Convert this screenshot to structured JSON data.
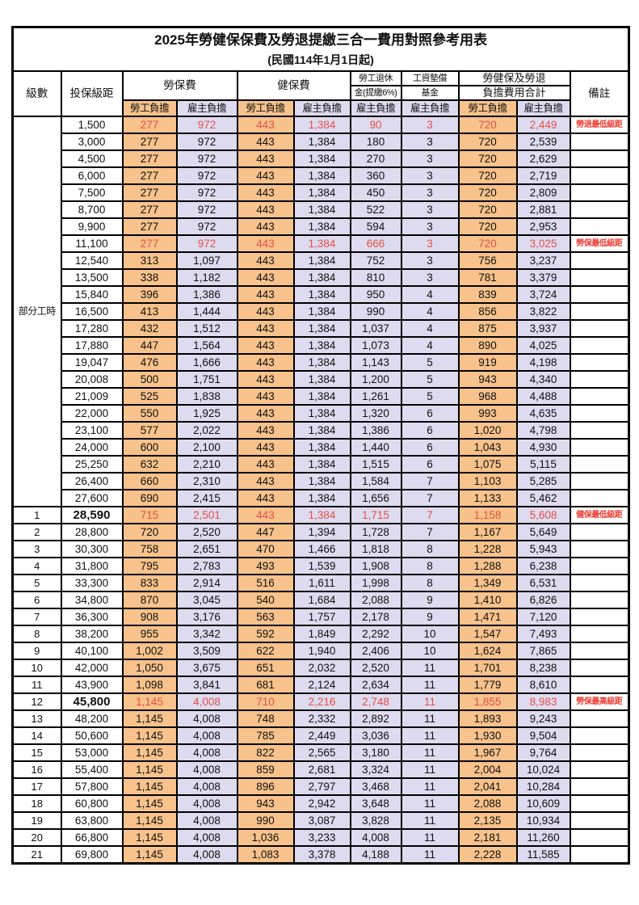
{
  "title": "2025年勞健保保費及勞退提繳三合一費用對照參考用表",
  "subtitle": "(民國114年1月1日起)",
  "header": {
    "level": "級數",
    "bracket": "投保級距",
    "labor_insurance": "勞保費",
    "health_insurance": "健保費",
    "pension_line1": "勞工退休",
    "pension_line2": "金(提繳6%)",
    "wage_fund_line1": "工資墊償",
    "wage_fund_line2": "基金",
    "total_line1": "勞健保及勞退",
    "total_line2": "負擔費用合計",
    "remark": "備註",
    "employee_share": "勞工負擔",
    "employer_share": "雇主負擔"
  },
  "part_time_label": "部分工時",
  "part_time_rowspan": 23,
  "colors": {
    "employee_bg": "#f7c28b",
    "employer_bg": "#dedbf0",
    "red_text": "#e64f46",
    "remark_red": "#f03a30"
  },
  "rows": [
    {
      "level": "",
      "bracket": "1,500",
      "values": [
        "277",
        "972",
        "443",
        "1,384",
        "90",
        "3",
        "720",
        "2,449"
      ],
      "remark": "勞退最低級距",
      "red": true
    },
    {
      "level": "",
      "bracket": "3,000",
      "values": [
        "277",
        "972",
        "443",
        "1,384",
        "180",
        "3",
        "720",
        "2,539"
      ]
    },
    {
      "level": "",
      "bracket": "4,500",
      "values": [
        "277",
        "972",
        "443",
        "1,384",
        "270",
        "3",
        "720",
        "2,629"
      ]
    },
    {
      "level": "",
      "bracket": "6,000",
      "values": [
        "277",
        "972",
        "443",
        "1,384",
        "360",
        "3",
        "720",
        "2,719"
      ]
    },
    {
      "level": "",
      "bracket": "7,500",
      "values": [
        "277",
        "972",
        "443",
        "1,384",
        "450",
        "3",
        "720",
        "2,809"
      ]
    },
    {
      "level": "",
      "bracket": "8,700",
      "values": [
        "277",
        "972",
        "443",
        "1,384",
        "522",
        "3",
        "720",
        "2,881"
      ]
    },
    {
      "level": "",
      "bracket": "9,900",
      "values": [
        "277",
        "972",
        "443",
        "1,384",
        "594",
        "3",
        "720",
        "2,953"
      ]
    },
    {
      "level": "",
      "bracket": "11,100",
      "values": [
        "277",
        "972",
        "443",
        "1,384",
        "666",
        "3",
        "720",
        "3,025"
      ],
      "remark": "勞保最低級距",
      "red": true
    },
    {
      "level": "",
      "bracket": "12,540",
      "values": [
        "313",
        "1,097",
        "443",
        "1,384",
        "752",
        "3",
        "756",
        "3,237"
      ]
    },
    {
      "level": "",
      "bracket": "13,500",
      "values": [
        "338",
        "1,182",
        "443",
        "1,384",
        "810",
        "3",
        "781",
        "3,379"
      ]
    },
    {
      "level": "",
      "bracket": "15,840",
      "values": [
        "396",
        "1,386",
        "443",
        "1,384",
        "950",
        "4",
        "839",
        "3,724"
      ]
    },
    {
      "level": "",
      "bracket": "16,500",
      "values": [
        "413",
        "1,444",
        "443",
        "1,384",
        "990",
        "4",
        "856",
        "3,822"
      ]
    },
    {
      "level": "",
      "bracket": "17,280",
      "values": [
        "432",
        "1,512",
        "443",
        "1,384",
        "1,037",
        "4",
        "875",
        "3,937"
      ]
    },
    {
      "level": "",
      "bracket": "17,880",
      "values": [
        "447",
        "1,564",
        "443",
        "1,384",
        "1,073",
        "4",
        "890",
        "4,025"
      ]
    },
    {
      "level": "",
      "bracket": "19,047",
      "values": [
        "476",
        "1,666",
        "443",
        "1,384",
        "1,143",
        "5",
        "919",
        "4,198"
      ]
    },
    {
      "level": "",
      "bracket": "20,008",
      "values": [
        "500",
        "1,751",
        "443",
        "1,384",
        "1,200",
        "5",
        "943",
        "4,340"
      ]
    },
    {
      "level": "",
      "bracket": "21,009",
      "values": [
        "525",
        "1,838",
        "443",
        "1,384",
        "1,261",
        "5",
        "968",
        "4,488"
      ]
    },
    {
      "level": "",
      "bracket": "22,000",
      "values": [
        "550",
        "1,925",
        "443",
        "1,384",
        "1,320",
        "6",
        "993",
        "4,635"
      ]
    },
    {
      "level": "",
      "bracket": "23,100",
      "values": [
        "577",
        "2,022",
        "443",
        "1,384",
        "1,386",
        "6",
        "1,020",
        "4,798"
      ]
    },
    {
      "level": "",
      "bracket": "24,000",
      "values": [
        "600",
        "2,100",
        "443",
        "1,384",
        "1,440",
        "6",
        "1,043",
        "4,930"
      ]
    },
    {
      "level": "",
      "bracket": "25,250",
      "values": [
        "632",
        "2,210",
        "443",
        "1,384",
        "1,515",
        "6",
        "1,075",
        "5,115"
      ]
    },
    {
      "level": "",
      "bracket": "26,400",
      "values": [
        "660",
        "2,310",
        "443",
        "1,384",
        "1,584",
        "7",
        "1,103",
        "5,285"
      ]
    },
    {
      "level": "",
      "bracket": "27,600",
      "values": [
        "690",
        "2,415",
        "443",
        "1,384",
        "1,656",
        "7",
        "1,133",
        "5,462"
      ]
    },
    {
      "level": "1",
      "bracket": "28,590",
      "values": [
        "715",
        "2,501",
        "443",
        "1,384",
        "1,715",
        "7",
        "1,158",
        "5,608"
      ],
      "remark": "健保最低級距",
      "red": true,
      "bold": true
    },
    {
      "level": "2",
      "bracket": "28,800",
      "values": [
        "720",
        "2,520",
        "447",
        "1,394",
        "1,728",
        "7",
        "1,167",
        "5,649"
      ]
    },
    {
      "level": "3",
      "bracket": "30,300",
      "values": [
        "758",
        "2,651",
        "470",
        "1,466",
        "1,818",
        "8",
        "1,228",
        "5,943"
      ]
    },
    {
      "level": "4",
      "bracket": "31,800",
      "values": [
        "795",
        "2,783",
        "493",
        "1,539",
        "1,908",
        "8",
        "1,288",
        "6,238"
      ]
    },
    {
      "level": "5",
      "bracket": "33,300",
      "values": [
        "833",
        "2,914",
        "516",
        "1,611",
        "1,998",
        "8",
        "1,349",
        "6,531"
      ]
    },
    {
      "level": "6",
      "bracket": "34,800",
      "values": [
        "870",
        "3,045",
        "540",
        "1,684",
        "2,088",
        "9",
        "1,410",
        "6,826"
      ]
    },
    {
      "level": "7",
      "bracket": "36,300",
      "values": [
        "908",
        "3,176",
        "563",
        "1,757",
        "2,178",
        "9",
        "1,471",
        "7,120"
      ]
    },
    {
      "level": "8",
      "bracket": "38,200",
      "values": [
        "955",
        "3,342",
        "592",
        "1,849",
        "2,292",
        "10",
        "1,547",
        "7,493"
      ]
    },
    {
      "level": "9",
      "bracket": "40,100",
      "values": [
        "1,002",
        "3,509",
        "622",
        "1,940",
        "2,406",
        "10",
        "1,624",
        "7,865"
      ]
    },
    {
      "level": "10",
      "bracket": "42,000",
      "values": [
        "1,050",
        "3,675",
        "651",
        "2,032",
        "2,520",
        "11",
        "1,701",
        "8,238"
      ]
    },
    {
      "level": "11",
      "bracket": "43,900",
      "values": [
        "1,098",
        "3,841",
        "681",
        "2,124",
        "2,634",
        "11",
        "1,779",
        "8,610"
      ]
    },
    {
      "level": "12",
      "bracket": "45,800",
      "values": [
        "1,145",
        "4,008",
        "710",
        "2,216",
        "2,748",
        "11",
        "1,855",
        "8,983"
      ],
      "remark": "勞保最高級距",
      "red": true,
      "bold": true
    },
    {
      "level": "13",
      "bracket": "48,200",
      "values": [
        "1,145",
        "4,008",
        "748",
        "2,332",
        "2,892",
        "11",
        "1,893",
        "9,243"
      ]
    },
    {
      "level": "14",
      "bracket": "50,600",
      "values": [
        "1,145",
        "4,008",
        "785",
        "2,449",
        "3,036",
        "11",
        "1,930",
        "9,504"
      ]
    },
    {
      "level": "15",
      "bracket": "53,000",
      "values": [
        "1,145",
        "4,008",
        "822",
        "2,565",
        "3,180",
        "11",
        "1,967",
        "9,764"
      ]
    },
    {
      "level": "16",
      "bracket": "55,400",
      "values": [
        "1,145",
        "4,008",
        "859",
        "2,681",
        "3,324",
        "11",
        "2,004",
        "10,024"
      ]
    },
    {
      "level": "17",
      "bracket": "57,800",
      "values": [
        "1,145",
        "4,008",
        "896",
        "2,797",
        "3,468",
        "11",
        "2,041",
        "10,284"
      ]
    },
    {
      "level": "18",
      "bracket": "60,800",
      "values": [
        "1,145",
        "4,008",
        "943",
        "2,942",
        "3,648",
        "11",
        "2,088",
        "10,609"
      ]
    },
    {
      "level": "19",
      "bracket": "63,800",
      "values": [
        "1,145",
        "4,008",
        "990",
        "3,087",
        "3,828",
        "11",
        "2,135",
        "10,934"
      ]
    },
    {
      "level": "20",
      "bracket": "66,800",
      "values": [
        "1,145",
        "4,008",
        "1,036",
        "3,233",
        "4,008",
        "11",
        "2,181",
        "11,260"
      ]
    },
    {
      "level": "21",
      "bracket": "69,800",
      "values": [
        "1,145",
        "4,008",
        "1,083",
        "3,378",
        "4,188",
        "11",
        "2,228",
        "11,585"
      ]
    }
  ]
}
